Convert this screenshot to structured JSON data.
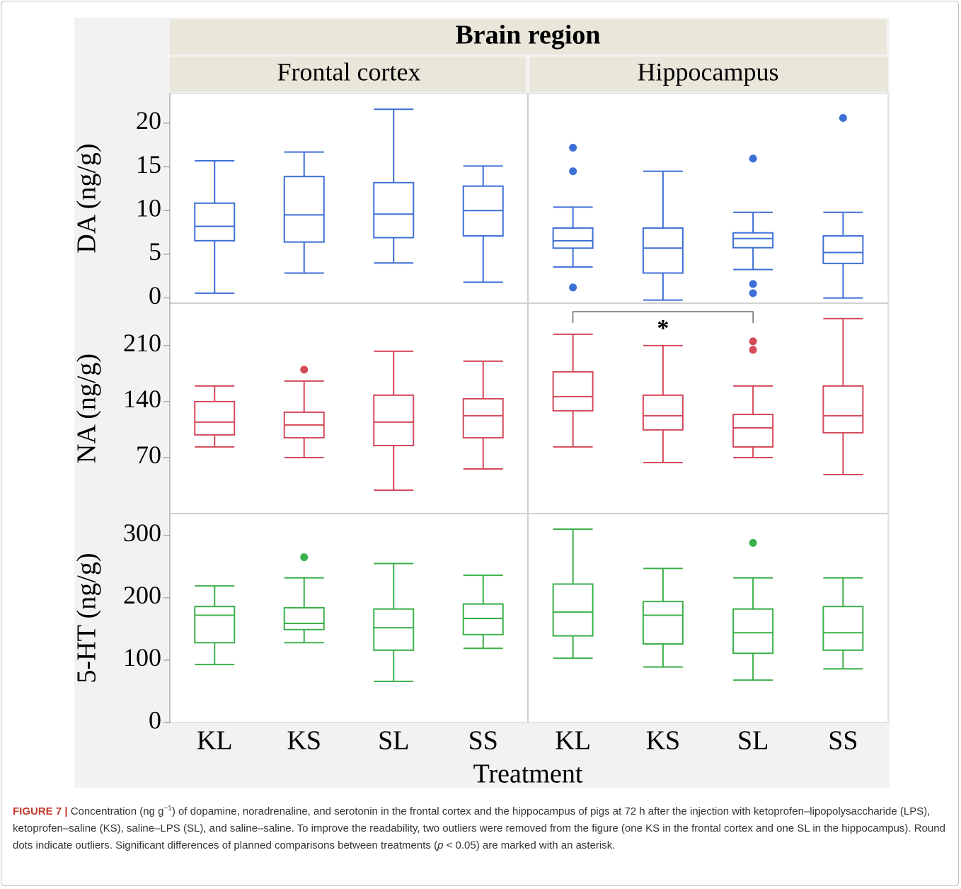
{
  "chart_data": {
    "type": "box",
    "title": "Brain region",
    "x_label": "Treatment",
    "columns": [
      {
        "label": "Frontal cortex",
        "categories": [
          "KL",
          "KS",
          "SL",
          "SS"
        ]
      },
      {
        "label": "Hippocampus",
        "categories": [
          "KL",
          "KS",
          "SL",
          "SS"
        ]
      }
    ],
    "rows": [
      {
        "y_label": "DA (ng/g)",
        "color": "#3e6fd6",
        "ylim": [
          -0.6,
          23.4
        ],
        "yticks": [
          0,
          5,
          10,
          15,
          20
        ],
        "panels": [
          {
            "boxes": [
              {
                "min": 0.55,
                "q1": 6.55,
                "median": 8.2,
                "q3": 10.85,
                "max": 15.7,
                "outliers": []
              },
              {
                "min": 2.85,
                "q1": 6.4,
                "median": 9.5,
                "q3": 13.9,
                "max": 16.7,
                "outliers": []
              },
              {
                "min": 4.0,
                "q1": 6.9,
                "median": 9.6,
                "q3": 13.2,
                "max": 21.6,
                "outliers": []
              },
              {
                "min": 1.8,
                "q1": 7.1,
                "median": 10.0,
                "q3": 12.8,
                "max": 15.1,
                "outliers": []
              }
            ]
          },
          {
            "boxes": [
              {
                "min": 3.55,
                "q1": 5.7,
                "median": 6.55,
                "q3": 8.0,
                "max": 10.4,
                "outliers": [
                  17.2,
                  14.5,
                  1.2
                ]
              },
              {
                "min": -0.25,
                "q1": 2.85,
                "median": 5.7,
                "q3": 8.0,
                "max": 14.5,
                "outliers": []
              },
              {
                "min": 3.25,
                "q1": 5.75,
                "median": 6.8,
                "q3": 7.45,
                "max": 9.8,
                "outliers": [
                  15.95,
                  1.6,
                  0.55
                ]
              },
              {
                "min": 0,
                "q1": 3.95,
                "median": 5.2,
                "q3": 7.1,
                "max": 9.8,
                "outliers": [
                  20.6
                ]
              }
            ]
          }
        ]
      },
      {
        "y_label": "NA (ng/g)",
        "color": "#d44a5a",
        "ylim": [
          0,
          263
        ],
        "yticks": [
          70,
          140,
          210
        ],
        "panels": [
          {
            "boxes": [
              {
                "min": 83.3,
                "q1": 98.4,
                "median": 114.3,
                "q3": 140,
                "max": 159.5,
                "outliers": []
              },
              {
                "min": 70,
                "q1": 94.8,
                "median": 110.8,
                "q3": 126.7,
                "max": 165.7,
                "outliers": [
                  179.9
                ]
              },
              {
                "min": 29.2,
                "q1": 85,
                "median": 114.3,
                "q3": 148,
                "max": 202.9,
                "outliers": []
              },
              {
                "min": 55.8,
                "q1": 94.8,
                "median": 122.3,
                "q3": 143.5,
                "max": 190.5,
                "outliers": []
              }
            ]
          },
          {
            "boxes": [
              {
                "min": 83.3,
                "q1": 128.5,
                "median": 146.2,
                "q3": 177.2,
                "max": 224.2,
                "outliers": []
              },
              {
                "min": 63.8,
                "q1": 104.6,
                "median": 122.3,
                "q3": 148,
                "max": 210,
                "outliers": []
              },
              {
                "min": 70,
                "q1": 83.3,
                "median": 107.2,
                "q3": 124,
                "max": 159.5,
                "outliers": [
                  215.3,
                  204.7
                ]
              },
              {
                "min": 48.7,
                "q1": 101,
                "median": 122.3,
                "q3": 159.5,
                "max": 243.7,
                "outliers": []
              }
            ],
            "significance": {
              "label": "*",
              "pair": [
                "KL",
                "SL"
              ]
            }
          }
        ]
      },
      {
        "y_label": "5-HT (ng/g)",
        "color": "#3bb04a",
        "ylim": [
          0,
          335
        ],
        "yticks": [
          0,
          100,
          200,
          300
        ],
        "panels": [
          {
            "boxes": [
              {
                "min": 93,
                "q1": 128,
                "median": 172,
                "q3": 186,
                "max": 219,
                "outliers": []
              },
              {
                "min": 128,
                "q1": 149,
                "median": 159,
                "q3": 184,
                "max": 232,
                "outliers": [
                  265
                ]
              },
              {
                "min": 66,
                "q1": 116,
                "median": 152,
                "q3": 182,
                "max": 255,
                "outliers": []
              },
              {
                "min": 119,
                "q1": 141,
                "median": 167,
                "q3": 190,
                "max": 236,
                "outliers": []
              }
            ]
          },
          {
            "boxes": [
              {
                "min": 103,
                "q1": 139,
                "median": 177,
                "q3": 222,
                "max": 310,
                "outliers": []
              },
              {
                "min": 89,
                "q1": 126,
                "median": 172,
                "q3": 194,
                "max": 247,
                "outliers": []
              },
              {
                "min": 68,
                "q1": 111,
                "median": 144,
                "q3": 182,
                "max": 232,
                "outliers": [
                  288
                ]
              },
              {
                "min": 86,
                "q1": 116,
                "median": 144,
                "q3": 186,
                "max": 232,
                "outliers": []
              }
            ]
          }
        ]
      }
    ]
  },
  "caption": {
    "label": "FIGURE 7 |",
    "superscript": "−1",
    "italic": "p",
    "text": [
      "Concentration (ng g",
      ") of dopamine, noradrenaline, and serotonin in the frontal cortex and the hippocampus of pigs at 72 h after the injection with ketoprofen–lipopolysaccharide (LPS), ketoprofen–saline (KS), saline–LPS (SL), and saline–saline. To improve the readability, two outliers were removed from the figure (one KS in the frontal cortex and one SL in the hippocampus). Round dots indicate outliers. Significant differences of planned comparisons between treatments (",
      " < 0.05) are marked with an asterisk."
    ]
  }
}
